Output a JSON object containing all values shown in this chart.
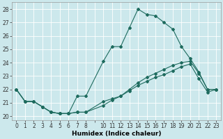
{
  "xlabel": "Humidex (Indice chaleur)",
  "bg_color": "#cce8ec",
  "line_color": "#1e6b5e",
  "grid_color": "#ffffff",
  "xlim": [
    -0.5,
    23.5
  ],
  "ylim": [
    19.7,
    28.5
  ],
  "yticks": [
    20,
    21,
    22,
    23,
    24,
    25,
    26,
    27,
    28
  ],
  "xtick_positions": [
    0,
    1,
    2,
    3,
    4,
    5,
    6,
    7,
    8,
    9,
    10,
    11,
    12,
    13,
    14,
    15,
    16,
    17,
    18,
    19,
    20,
    21,
    22,
    23
  ],
  "xtick_labels": [
    "0",
    "1",
    "2",
    "3",
    "4",
    "5",
    "6",
    "7",
    "8",
    "",
    "10",
    "11",
    "12",
    "13",
    "14",
    "15",
    "16",
    "17",
    "18",
    "19",
    "20",
    "21",
    "22",
    "23"
  ],
  "line1_x": [
    0,
    1,
    2,
    3,
    4,
    5,
    6,
    7,
    8,
    10,
    11,
    12,
    13,
    14,
    15,
    16,
    17,
    18,
    19,
    20,
    21,
    22,
    23
  ],
  "line1_y": [
    22.0,
    21.1,
    21.1,
    20.7,
    20.3,
    20.2,
    20.2,
    21.5,
    21.5,
    24.1,
    25.2,
    25.2,
    26.6,
    28.0,
    27.6,
    27.5,
    27.0,
    26.5,
    25.2,
    24.3,
    23.3,
    22.0,
    22.0
  ],
  "line2_x": [
    0,
    1,
    2,
    3,
    4,
    5,
    6,
    7,
    8,
    10,
    11,
    12,
    13,
    14,
    15,
    16,
    17,
    18,
    19,
    20,
    21,
    22,
    23
  ],
  "line2_y": [
    22.0,
    21.1,
    21.1,
    20.7,
    20.3,
    20.2,
    20.2,
    20.3,
    20.3,
    21.1,
    21.3,
    21.5,
    22.0,
    22.5,
    22.9,
    23.2,
    23.5,
    23.8,
    24.0,
    24.1,
    23.2,
    22.0,
    22.0
  ],
  "line3_x": [
    0,
    1,
    2,
    3,
    4,
    5,
    6,
    7,
    8,
    10,
    11,
    12,
    13,
    14,
    15,
    16,
    17,
    18,
    19,
    20,
    21,
    22,
    23
  ],
  "line3_y": [
    22.0,
    21.1,
    21.1,
    20.7,
    20.3,
    20.2,
    20.2,
    20.3,
    20.3,
    20.8,
    21.2,
    21.5,
    21.9,
    22.3,
    22.6,
    22.9,
    23.1,
    23.4,
    23.7,
    23.9,
    22.8,
    21.8,
    22.0
  ],
  "marker": "D",
  "markersize": 2.0,
  "linewidth": 0.8,
  "tick_fontsize": 5.5,
  "xlabel_fontsize": 6.5
}
